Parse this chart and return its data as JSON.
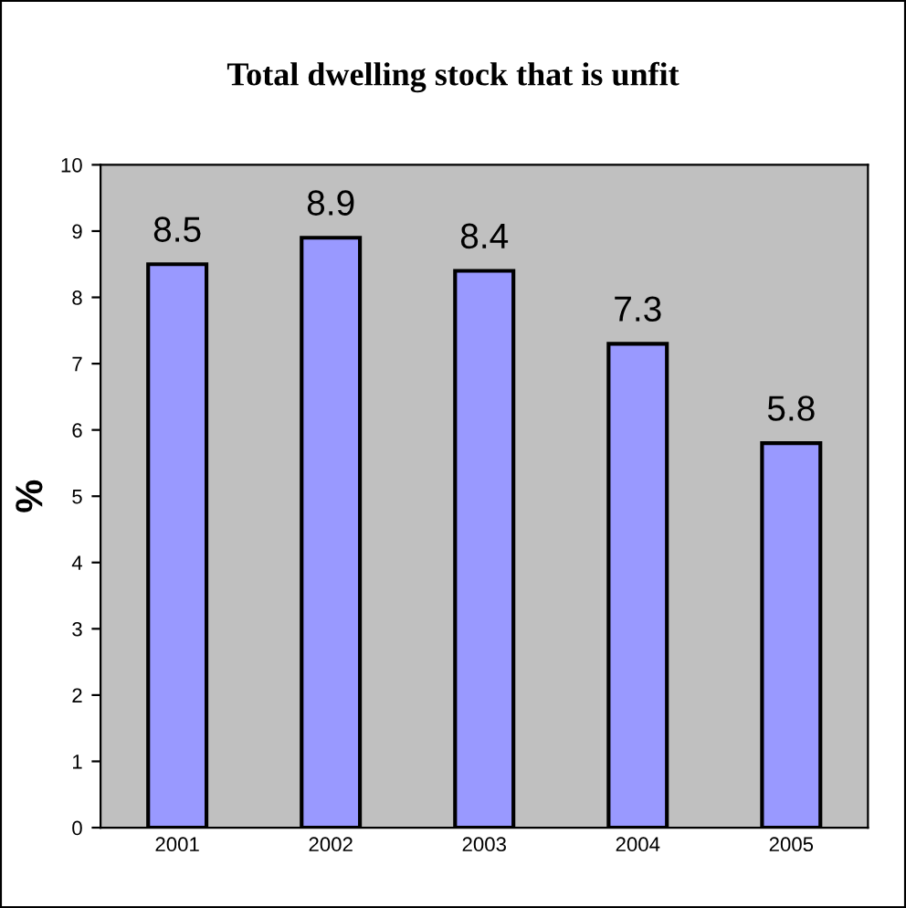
{
  "chart_data": {
    "type": "bar",
    "title": "Total dwelling stock that is unfit",
    "ylabel": "%",
    "categories": [
      "2001",
      "2002",
      "2003",
      "2004",
      "2005"
    ],
    "values": [
      8.5,
      8.9,
      8.4,
      7.3,
      5.8
    ],
    "color": "#9999ff",
    "ylim": [
      0,
      10
    ],
    "yticks": [
      0,
      1,
      2,
      3,
      4,
      5,
      6,
      7,
      8,
      9,
      10
    ],
    "grid": false,
    "data_labels": true
  }
}
